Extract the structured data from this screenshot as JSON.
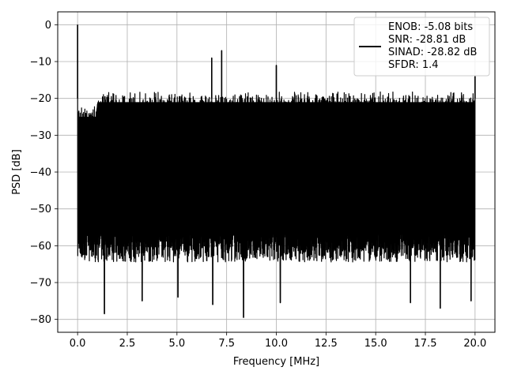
{
  "chart_data": {
    "type": "line",
    "title": "",
    "xlabel": "Frequency [MHz]",
    "ylabel": "PSD [dB]",
    "xlim": [
      -1.0,
      21.0
    ],
    "ylim": [
      -83.5,
      3.5
    ],
    "xticks": [
      0.0,
      2.5,
      5.0,
      7.5,
      10.0,
      12.5,
      15.0,
      17.5,
      20.0
    ],
    "xtick_labels": [
      "0.0",
      "2.5",
      "5.0",
      "7.5",
      "10.0",
      "12.5",
      "15.0",
      "17.5",
      "20.0"
    ],
    "yticks": [
      0,
      -10,
      -20,
      -30,
      -40,
      -50,
      -60,
      -70,
      -80
    ],
    "ytick_labels": [
      "0",
      "−10",
      "−20",
      "−30",
      "−40",
      "−50",
      "−60",
      "−70",
      "−80"
    ],
    "grid": true,
    "legend_position": "top-right",
    "series": [
      {
        "name": "ENOB: -5.08 bits\nSNR: -28.81 dB\nSINAD: -28.82 dB\nSFDR: 1.4",
        "color": "#000000",
        "x_range": [
          0.0,
          20.0
        ],
        "noise_ceiling_db": -20,
        "noise_floor_db": -62,
        "spikes": [
          {
            "x": 0.0,
            "y": 0.0
          },
          {
            "x": 6.75,
            "y": -9.0
          },
          {
            "x": 7.25,
            "y": -7.0
          },
          {
            "x": 10.0,
            "y": -11.0
          },
          {
            "x": 20.0,
            "y": -14.0
          }
        ],
        "dips": [
          {
            "x": 1.35,
            "y": -78.5
          },
          {
            "x": 3.25,
            "y": -75.0
          },
          {
            "x": 5.05,
            "y": -74.0
          },
          {
            "x": 6.8,
            "y": -76.0
          },
          {
            "x": 8.35,
            "y": -79.5
          },
          {
            "x": 10.2,
            "y": -75.5
          },
          {
            "x": 16.75,
            "y": -75.5
          },
          {
            "x": 18.25,
            "y": -77.0
          },
          {
            "x": 19.8,
            "y": -75.0
          }
        ]
      }
    ],
    "legend_lines": [
      "ENOB: -5.08 bits",
      "SNR: -28.81 dB",
      "SINAD: -28.82 dB",
      "SFDR: 1.4"
    ]
  }
}
